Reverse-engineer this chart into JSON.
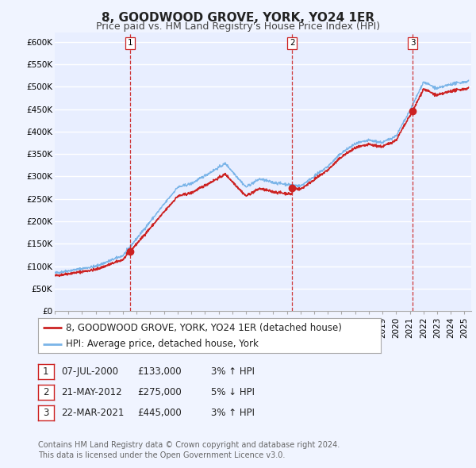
{
  "title": "8, GOODWOOD GROVE, YORK, YO24 1ER",
  "subtitle": "Price paid vs. HM Land Registry's House Price Index (HPI)",
  "ylim": [
    0,
    620000
  ],
  "yticks": [
    0,
    50000,
    100000,
    150000,
    200000,
    250000,
    300000,
    350000,
    400000,
    450000,
    500000,
    550000,
    600000
  ],
  "ytick_labels": [
    "£0",
    "£50K",
    "£100K",
    "£150K",
    "£200K",
    "£250K",
    "£300K",
    "£350K",
    "£400K",
    "£450K",
    "£500K",
    "£550K",
    "£600K"
  ],
  "xlim_start": 1995.0,
  "xlim_end": 2025.5,
  "background_color": "#f0f4ff",
  "plot_bg_color": "#e8eeff",
  "grid_color": "#ffffff",
  "hpi_line_color": "#7ab4e8",
  "price_line_color": "#cc2222",
  "sale_marker_color": "#cc2222",
  "vline_color": "#cc2222",
  "transactions": [
    {
      "date_num": 2000.52,
      "price": 133000,
      "label": "1",
      "pct": "3%",
      "dir": "↑",
      "date_str": "07-JUL-2000",
      "price_str": "£133,000"
    },
    {
      "date_num": 2012.39,
      "price": 275000,
      "label": "2",
      "pct": "5%",
      "dir": "↓",
      "date_str": "21-MAY-2012",
      "price_str": "£275,000"
    },
    {
      "date_num": 2021.22,
      "price": 445000,
      "label": "3",
      "pct": "3%",
      "dir": "↑",
      "date_str": "22-MAR-2021",
      "price_str": "£445,000"
    }
  ],
  "legend_label_price": "8, GOODWOOD GROVE, YORK, YO24 1ER (detached house)",
  "legend_label_hpi": "HPI: Average price, detached house, York",
  "footer_line1": "Contains HM Land Registry data © Crown copyright and database right 2024.",
  "footer_line2": "This data is licensed under the Open Government Licence v3.0.",
  "title_fontsize": 11,
  "subtitle_fontsize": 9,
  "tick_fontsize": 7.5,
  "legend_fontsize": 8.5,
  "footer_fontsize": 7,
  "table_fontsize": 8.5
}
